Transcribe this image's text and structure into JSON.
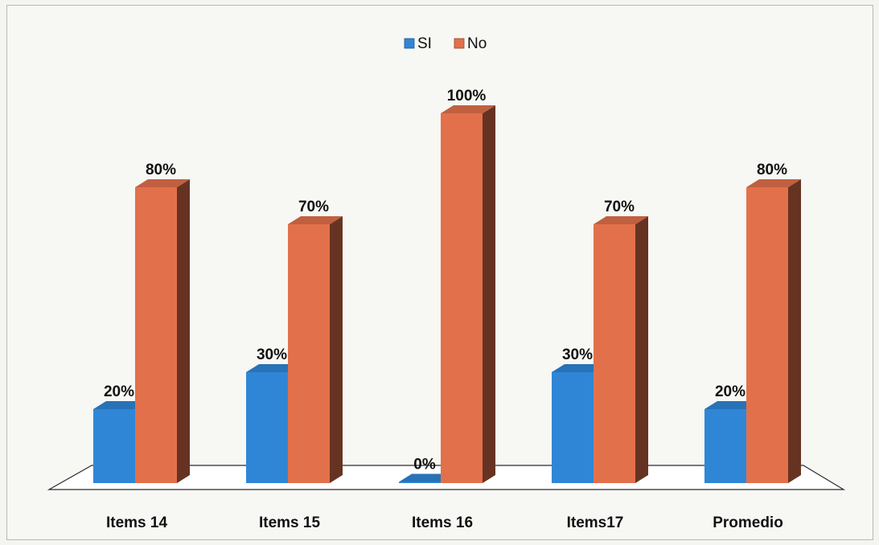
{
  "chart_data": {
    "type": "bar",
    "title": "",
    "xlabel": "",
    "ylabel": "",
    "ylim": [
      0,
      100
    ],
    "grid": false,
    "legend_position": "top-center",
    "categories": [
      "Items 14",
      "Items 15",
      "Items 16",
      "Items17",
      "Promedio"
    ],
    "series": [
      {
        "name": "SI",
        "color": "#2f86d6",
        "values": [
          20,
          30,
          0,
          30,
          20
        ],
        "labels": [
          "20%",
          "30%",
          "0%",
          "30%",
          "20%"
        ]
      },
      {
        "name": "No",
        "color": "#e2714b",
        "values": [
          80,
          70,
          100,
          70,
          80
        ],
        "labels": [
          "80%",
          "70%",
          "100%",
          "70%",
          "80%"
        ]
      }
    ]
  }
}
